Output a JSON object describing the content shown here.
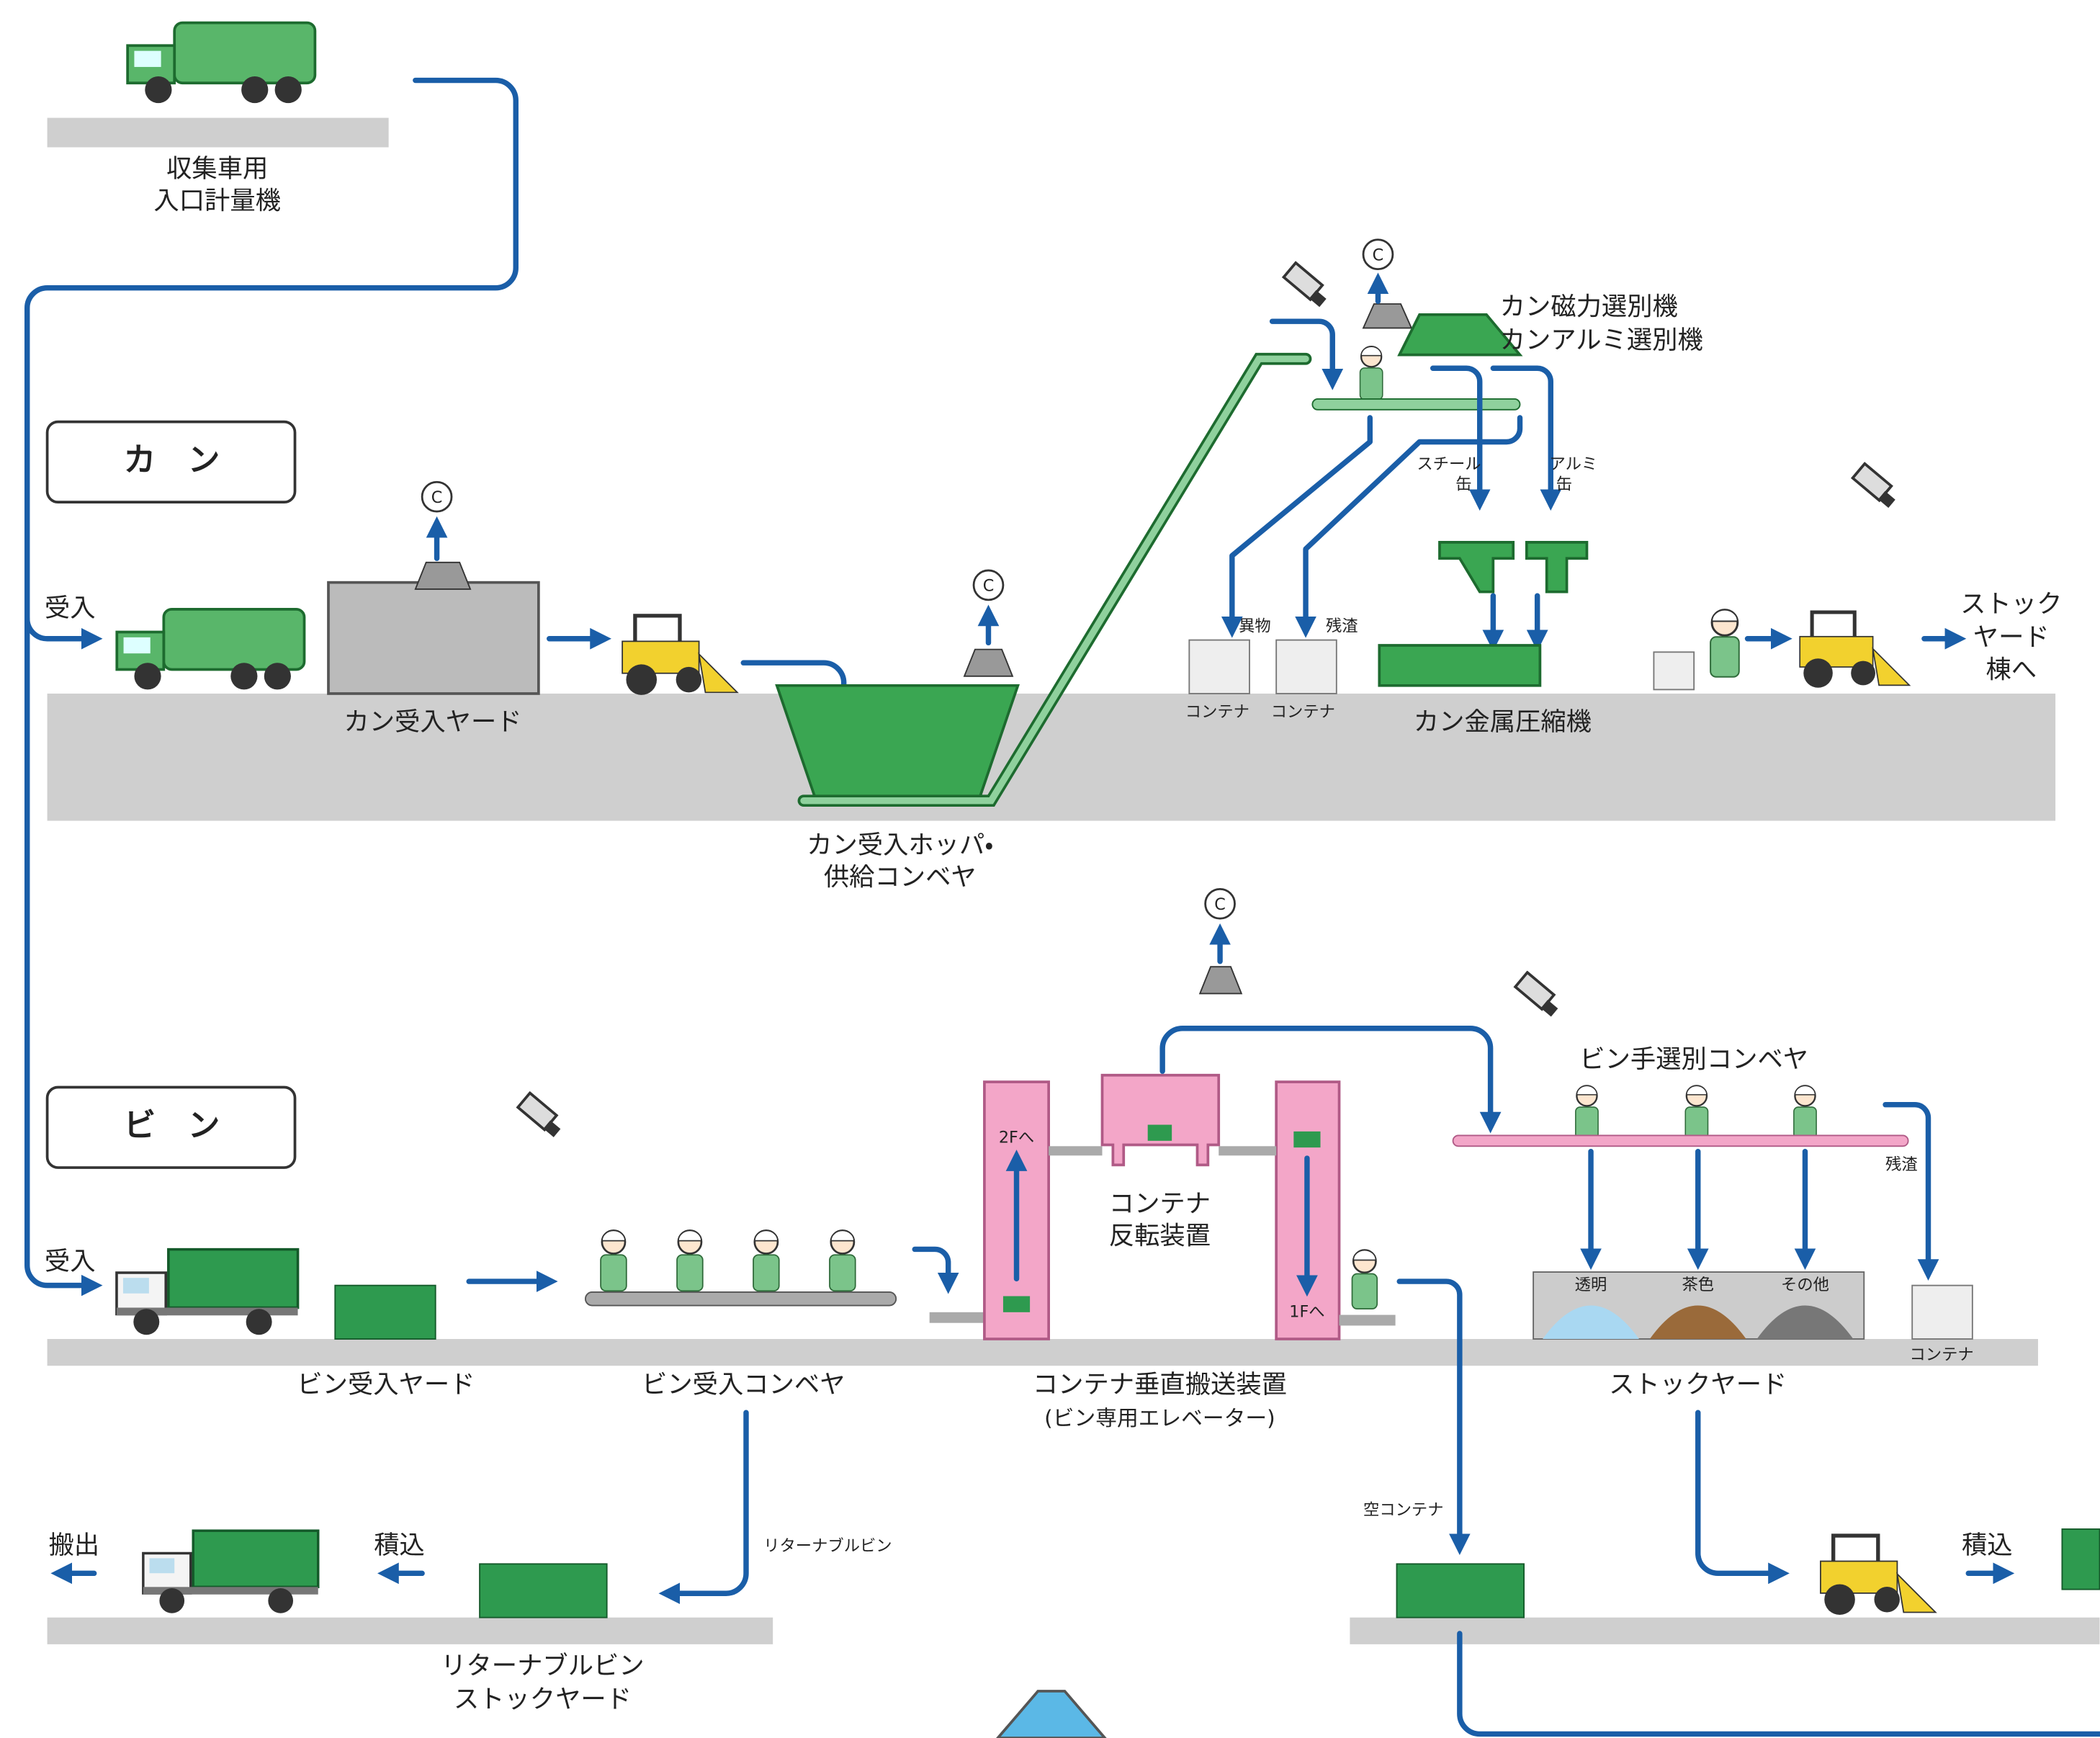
{
  "scale": {
    "lines": [
      "収集車用",
      "入口計量機"
    ]
  },
  "sections": [
    "カ　ン",
    "ビ　ン"
  ],
  "c_marks": [
    "C",
    "C",
    "C",
    "C"
  ],
  "can_line": {
    "intake": "受入",
    "yard": "カン受入ヤード",
    "hopper": [
      "カン受入ホッパ・",
      "供給コンベヤ"
    ],
    "separator": [
      "カン磁力選別機",
      "カンアルミ選別機"
    ],
    "steel": [
      "スチール",
      "缶"
    ],
    "alu": [
      "アルミ",
      "缶"
    ],
    "foreign": "異物",
    "residue": "残渣",
    "containers": [
      "コンテナ",
      "コンテナ"
    ],
    "compressor": "カン金属圧縮機",
    "to_stock": [
      "ストック",
      "ヤード",
      "棟へ"
    ]
  },
  "bin_line": {
    "intake": "受入",
    "yard": "ビン受入ヤード",
    "conveyor": "ビン受入コンベヤ",
    "elevator": [
      "コンテナ垂直搬送装置",
      "(ビン専用エレベーター)"
    ],
    "up": "2Fへ",
    "down": "1Fへ",
    "inverter": [
      "コンテナ",
      "反転装置"
    ],
    "sorting": "ビン手選別コンベヤ",
    "residue": "残渣",
    "bins": [
      "透明",
      "茶色",
      "その他"
    ],
    "container": "コンテナ",
    "stock_yard": "ストックヤード",
    "out": "搬出",
    "load_left": "積込",
    "returnable": "リターナブルビン",
    "returnable_yard": [
      "リターナブルビン",
      "ストックヤード"
    ],
    "empty_container": "空コンテナ",
    "load_right": "積込"
  }
}
